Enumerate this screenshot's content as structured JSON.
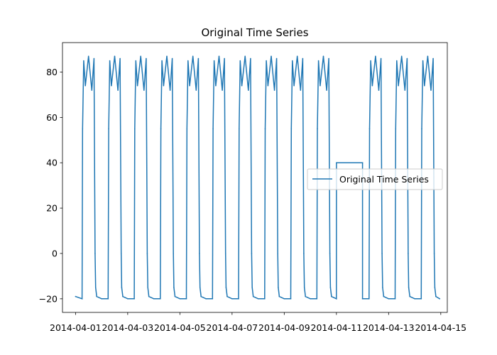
{
  "chart_data": {
    "type": "line",
    "title": "Original Time Series",
    "xlabel": "",
    "ylabel": "",
    "grid": false,
    "legend_placement": "center-right",
    "xlim": [
      "2014-03-31T12:00",
      "2014-04-15T06:00"
    ],
    "ylim": [
      -26,
      93
    ],
    "x_ticks": [
      "2014-04-01",
      "2014-04-03",
      "2014-04-05",
      "2014-04-07",
      "2014-04-09",
      "2014-04-11",
      "2014-04-13",
      "2014-04-15"
    ],
    "y_ticks": [
      -20,
      0,
      20,
      40,
      60,
      80
    ],
    "series": [
      {
        "name": "Original Time Series",
        "color": "#1f77b4",
        "x": [
          "2014-04-01T00:00",
          "2014-04-01T06:00",
          "2014-04-01T06:30",
          "2014-04-01T07:30",
          "2014-04-01T09:00",
          "2014-04-01T12:00",
          "2014-04-01T15:00",
          "2014-04-01T17:00",
          "2014-04-01T18:00",
          "2014-04-01T18:30",
          "2014-04-01T19:30",
          "2014-04-02T00:00",
          "2014-04-02T06:00",
          "2014-04-02T06:30",
          "2014-04-02T07:30",
          "2014-04-02T09:00",
          "2014-04-02T12:00",
          "2014-04-02T15:00",
          "2014-04-02T17:00",
          "2014-04-02T18:00",
          "2014-04-02T18:30",
          "2014-04-02T19:30",
          "2014-04-03T00:00",
          "2014-04-03T06:00",
          "2014-04-03T06:30",
          "2014-04-03T07:30",
          "2014-04-03T09:00",
          "2014-04-03T12:00",
          "2014-04-03T15:00",
          "2014-04-03T17:00",
          "2014-04-03T18:00",
          "2014-04-03T18:30",
          "2014-04-03T19:30",
          "2014-04-04T00:00",
          "2014-04-04T06:00",
          "2014-04-04T06:30",
          "2014-04-04T07:30",
          "2014-04-04T09:00",
          "2014-04-04T12:00",
          "2014-04-04T15:00",
          "2014-04-04T17:00",
          "2014-04-04T18:00",
          "2014-04-04T18:30",
          "2014-04-04T19:30",
          "2014-04-05T00:00",
          "2014-04-05T06:00",
          "2014-04-05T06:30",
          "2014-04-05T07:30",
          "2014-04-05T09:00",
          "2014-04-05T12:00",
          "2014-04-05T15:00",
          "2014-04-05T17:00",
          "2014-04-05T18:00",
          "2014-04-05T18:30",
          "2014-04-05T19:30",
          "2014-04-06T00:00",
          "2014-04-06T06:00",
          "2014-04-06T06:30",
          "2014-04-06T07:30",
          "2014-04-06T09:00",
          "2014-04-06T12:00",
          "2014-04-06T15:00",
          "2014-04-06T17:00",
          "2014-04-06T18:00",
          "2014-04-06T18:30",
          "2014-04-06T19:30",
          "2014-04-07T00:00",
          "2014-04-07T06:00",
          "2014-04-07T06:30",
          "2014-04-07T07:30",
          "2014-04-07T09:00",
          "2014-04-07T12:00",
          "2014-04-07T15:00",
          "2014-04-07T17:00",
          "2014-04-07T18:00",
          "2014-04-07T18:30",
          "2014-04-07T19:30",
          "2014-04-08T00:00",
          "2014-04-08T06:00",
          "2014-04-08T06:30",
          "2014-04-08T07:30",
          "2014-04-08T09:00",
          "2014-04-08T12:00",
          "2014-04-08T15:00",
          "2014-04-08T17:00",
          "2014-04-08T18:00",
          "2014-04-08T18:30",
          "2014-04-08T19:30",
          "2014-04-09T00:00",
          "2014-04-09T06:00",
          "2014-04-09T06:30",
          "2014-04-09T07:30",
          "2014-04-09T09:00",
          "2014-04-09T12:00",
          "2014-04-09T15:00",
          "2014-04-09T17:00",
          "2014-04-09T18:00",
          "2014-04-09T18:30",
          "2014-04-09T19:30",
          "2014-04-10T00:00",
          "2014-04-10T06:00",
          "2014-04-10T06:30",
          "2014-04-10T07:30",
          "2014-04-10T09:00",
          "2014-04-10T12:00",
          "2014-04-10T15:00",
          "2014-04-10T17:00",
          "2014-04-10T18:00",
          "2014-04-10T18:30",
          "2014-04-10T19:30",
          "2014-04-11T00:00",
          "2014-04-11T00:01",
          "2014-04-11T23:59",
          "2014-04-12T00:00",
          "2014-04-12T06:00",
          "2014-04-12T06:30",
          "2014-04-12T07:30",
          "2014-04-12T09:00",
          "2014-04-12T12:00",
          "2014-04-12T15:00",
          "2014-04-12T17:00",
          "2014-04-12T18:00",
          "2014-04-12T18:30",
          "2014-04-12T19:30",
          "2014-04-13T00:00",
          "2014-04-13T06:00",
          "2014-04-13T06:30",
          "2014-04-13T07:30",
          "2014-04-13T09:00",
          "2014-04-13T12:00",
          "2014-04-13T15:00",
          "2014-04-13T17:00",
          "2014-04-13T18:00",
          "2014-04-13T18:30",
          "2014-04-13T19:30",
          "2014-04-14T00:00",
          "2014-04-14T06:00",
          "2014-04-14T06:30",
          "2014-04-14T07:30",
          "2014-04-14T09:00",
          "2014-04-14T12:00",
          "2014-04-14T15:00",
          "2014-04-14T17:00",
          "2014-04-14T18:00",
          "2014-04-14T18:30",
          "2014-04-14T19:30",
          "2014-04-14T23:00"
        ],
        "y": [
          -19,
          -20,
          55,
          85,
          74,
          87,
          72,
          86,
          0,
          -15,
          -19,
          -20,
          -20,
          55,
          85,
          74,
          87,
          72,
          86,
          0,
          -15,
          -19,
          -20,
          -20,
          55,
          85,
          74,
          87,
          72,
          86,
          0,
          -15,
          -19,
          -20,
          -20,
          55,
          85,
          74,
          87,
          72,
          86,
          0,
          -15,
          -19,
          -20,
          -20,
          55,
          85,
          74,
          87,
          72,
          86,
          0,
          -15,
          -19,
          -20,
          -20,
          55,
          85,
          74,
          87,
          72,
          86,
          0,
          -15,
          -19,
          -20,
          -20,
          55,
          85,
          74,
          87,
          72,
          86,
          0,
          -15,
          -19,
          -20,
          -20,
          55,
          85,
          74,
          87,
          72,
          86,
          0,
          -15,
          -19,
          -20,
          -20,
          55,
          85,
          74,
          87,
          72,
          86,
          0,
          -15,
          -19,
          -20,
          -20,
          55,
          85,
          74,
          87,
          72,
          86,
          0,
          -15,
          -19,
          -20,
          40,
          40,
          -20,
          -20,
          55,
          85,
          74,
          87,
          72,
          86,
          0,
          -15,
          -19,
          -20,
          -20,
          55,
          85,
          74,
          87,
          72,
          86,
          0,
          -15,
          -19,
          -20,
          -20,
          55,
          85,
          74,
          87,
          72,
          86,
          0,
          -15,
          -19,
          -20
        ]
      }
    ]
  }
}
